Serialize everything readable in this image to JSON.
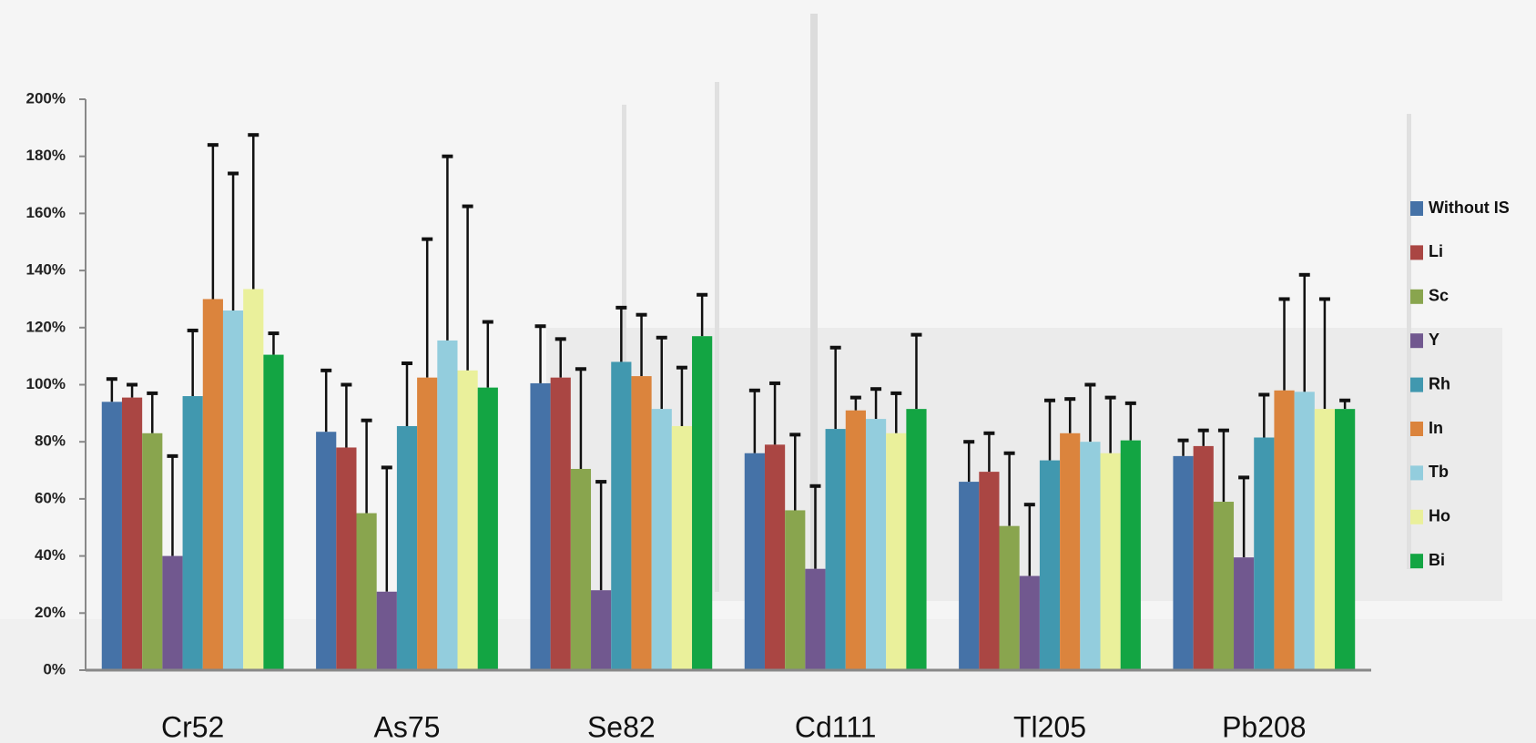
{
  "chart_data": {
    "type": "bar",
    "categories": [
      "Cr52",
      "As75",
      "Se82",
      "Cd111",
      "Tl205",
      "Pb208"
    ],
    "series": [
      {
        "name": "Without IS",
        "color": "#4572a7",
        "values": [
          94,
          83.5,
          100.5,
          76,
          66,
          75
        ],
        "errors": [
          8,
          21.5,
          20,
          22,
          14,
          5.5
        ]
      },
      {
        "name": "Li",
        "color": "#aa4643",
        "values": [
          95.5,
          78,
          102.5,
          79,
          69.5,
          78.5
        ],
        "errors": [
          4.5,
          22,
          13.5,
          21.5,
          13.5,
          5.5
        ]
      },
      {
        "name": "Sc",
        "color": "#89a54e",
        "values": [
          83,
          55,
          70.5,
          56,
          50.5,
          59
        ],
        "errors": [
          14,
          32.5,
          35,
          26.5,
          25.5,
          25
        ]
      },
      {
        "name": "Y",
        "color": "#71588f",
        "values": [
          40,
          27.5,
          28,
          35.5,
          33,
          39.5
        ],
        "errors": [
          35,
          43.5,
          38,
          29,
          25,
          28
        ]
      },
      {
        "name": "Rh",
        "color": "#4198af",
        "values": [
          96,
          85.5,
          108,
          84.5,
          73.5,
          81.5
        ],
        "errors": [
          23,
          22,
          19,
          28.5,
          21,
          15
        ]
      },
      {
        "name": "In",
        "color": "#db843d",
        "values": [
          130,
          102.5,
          103,
          91,
          83,
          98
        ],
        "errors": [
          54,
          48.5,
          21.5,
          4.5,
          12,
          32
        ]
      },
      {
        "name": "Tb",
        "color": "#93cddd",
        "values": [
          126,
          115.5,
          91.5,
          88,
          80,
          97.5
        ],
        "errors": [
          48,
          64.5,
          25,
          10.5,
          20,
          41
        ]
      },
      {
        "name": "Ho",
        "color": "#eaf09b",
        "values": [
          133.5,
          105,
          85.5,
          83,
          76,
          91.5
        ],
        "errors": [
          54,
          57.5,
          20.5,
          14,
          19.5,
          38.5
        ]
      },
      {
        "name": "Bi",
        "color": "#13a543",
        "values": [
          110.5,
          99,
          117,
          91.5,
          80.5,
          91.5
        ],
        "errors": [
          7.5,
          23,
          14.5,
          26,
          13,
          3
        ]
      }
    ],
    "ylim": [
      0,
      200
    ],
    "yticks": [
      {
        "value": 0,
        "label": "0%"
      },
      {
        "value": 20,
        "label": "20%"
      },
      {
        "value": 40,
        "label": "40%"
      },
      {
        "value": 60,
        "label": "60%"
      },
      {
        "value": 80,
        "label": "80%"
      },
      {
        "value": 100,
        "label": "100%"
      },
      {
        "value": 120,
        "label": "120%"
      },
      {
        "value": 140,
        "label": "140%"
      },
      {
        "value": 160,
        "label": "160%"
      },
      {
        "value": 180,
        "label": "180%"
      },
      {
        "value": 200,
        "label": "200%"
      }
    ],
    "legend": "right"
  }
}
